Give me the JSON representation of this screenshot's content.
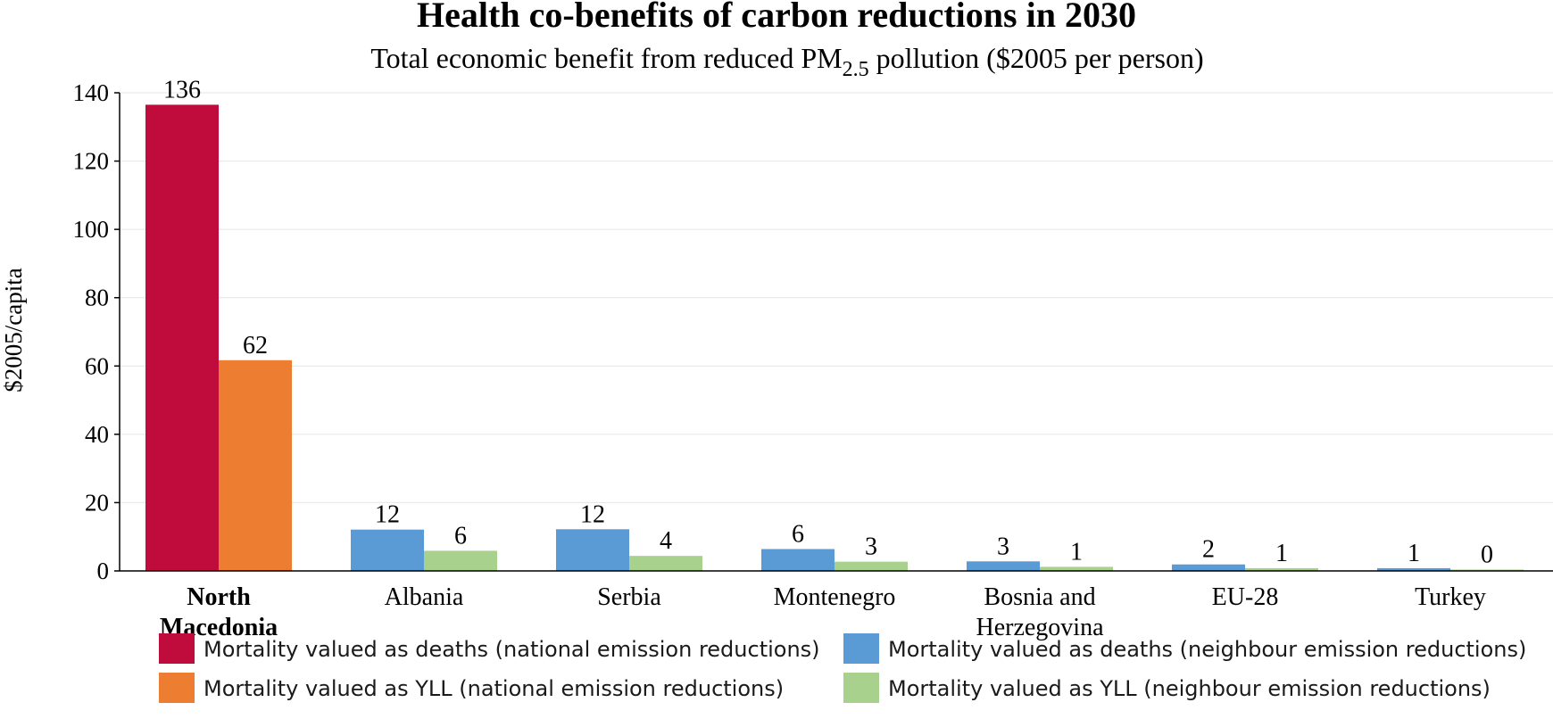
{
  "chart_data": {
    "type": "bar",
    "title": "Health co-benefits of carbon reductions in 2030",
    "subtitle": {
      "before": "Total economic benefit from reduced PM",
      "subscript": "2.5",
      "after": " pollution ($2005 per person)"
    },
    "ylabel": "$2005/capita",
    "xlabel": "",
    "ylim": [
      0,
      140
    ],
    "yticks": [
      0,
      20,
      40,
      60,
      80,
      100,
      120,
      140
    ],
    "grid": true,
    "legend_position": "bottom",
    "categories": [
      {
        "lines": [
          "North",
          "Macedonia"
        ],
        "bold": true
      },
      {
        "lines": [
          "Albania"
        ],
        "bold": false
      },
      {
        "lines": [
          "Serbia"
        ],
        "bold": false
      },
      {
        "lines": [
          "Montenegro"
        ],
        "bold": false
      },
      {
        "lines": [
          "Bosnia and",
          "Herzegovina"
        ],
        "bold": false
      },
      {
        "lines": [
          "EU-28"
        ],
        "bold": false
      },
      {
        "lines": [
          "Turkey"
        ],
        "bold": false
      }
    ],
    "bars": [
      {
        "deaths": 136,
        "yll": 62,
        "deaths_value": 136.5,
        "yll_value": 61.7,
        "kind": "national"
      },
      {
        "deaths": 12,
        "yll": 6,
        "deaths_value": 12.1,
        "yll_value": 5.9,
        "kind": "neighbour"
      },
      {
        "deaths": 12,
        "yll": 4,
        "deaths_value": 12.2,
        "yll_value": 4.4,
        "kind": "neighbour"
      },
      {
        "deaths": 6,
        "yll": 3,
        "deaths_value": 6.4,
        "yll_value": 2.7,
        "kind": "neighbour"
      },
      {
        "deaths": 3,
        "yll": 1,
        "deaths_value": 2.8,
        "yll_value": 1.2,
        "kind": "neighbour"
      },
      {
        "deaths": 2,
        "yll": 1,
        "deaths_value": 1.9,
        "yll_value": 0.8,
        "kind": "neighbour"
      },
      {
        "deaths": 1,
        "yll": 0,
        "deaths_value": 0.8,
        "yll_value": 0.4,
        "kind": "neighbour"
      }
    ],
    "series": [
      {
        "name": "Mortality valued as deaths (national emission reductions)",
        "color": "#C00C3C"
      },
      {
        "name": "Mortality valued as YLL (national emission reductions)",
        "color": "#ED7D31"
      },
      {
        "name": "Mortality valued as deaths (neighbour emission reductions)",
        "color": "#5B9BD5"
      },
      {
        "name": "Mortality valued as YLL (neighbour emission reductions)",
        "color": "#A9D18E"
      }
    ]
  }
}
